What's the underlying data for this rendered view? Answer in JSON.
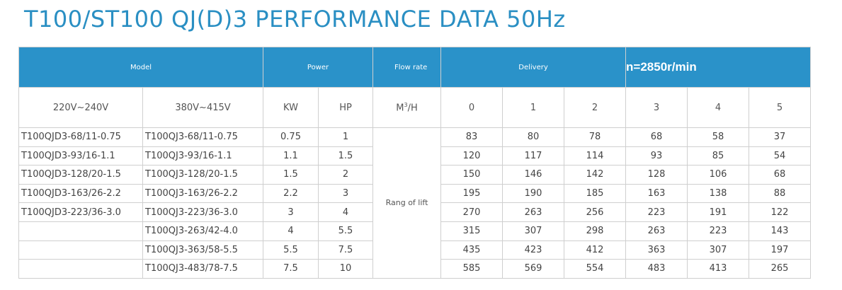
{
  "title": "T100/ST100 QJ(D)3  PERFORMANCE DATA 50Hz",
  "header": {
    "model": "Model",
    "power": "Power",
    "flow_rate": "Flow rate",
    "delivery": "Delivery",
    "speed": "n=2850r/min"
  },
  "subheader": {
    "voltage_1": "220V~240V",
    "voltage_2": "380V~415V",
    "kw": "KW",
    "hp": "HP",
    "flow_unit_base": "M",
    "flow_unit_exp": "3",
    "flow_unit_tail": "/H",
    "flows": [
      "0",
      "1",
      "2",
      "3",
      "4",
      "5"
    ]
  },
  "lift_label": "Rang of lift",
  "rows": [
    {
      "m1": "T100QJD3-68/11-0.75",
      "m2": "T100QJ3-68/11-0.75",
      "kw": "0.75",
      "hp": "1",
      "lift": [
        "83",
        "80",
        "78",
        "68",
        "58",
        "37"
      ]
    },
    {
      "m1": "T100QJD3-93/16-1.1",
      "m2": "T100QJ3-93/16-1.1",
      "kw": "1.1",
      "hp": "1.5",
      "lift": [
        "120",
        "117",
        "114",
        "93",
        "85",
        "54"
      ]
    },
    {
      "m1": "T100QJD3-128/20-1.5",
      "m2": "T100QJ3-128/20-1.5",
      "kw": "1.5",
      "hp": "2",
      "lift": [
        "150",
        "146",
        "142",
        "128",
        "106",
        "68"
      ]
    },
    {
      "m1": "T100QJD3-163/26-2.2",
      "m2": "T100QJ3-163/26-2.2",
      "kw": "2.2",
      "hp": "3",
      "lift": [
        "195",
        "190",
        "185",
        "163",
        "138",
        "88"
      ]
    },
    {
      "m1": "T100QJD3-223/36-3.0",
      "m2": "T100QJ3-223/36-3.0",
      "kw": "3",
      "hp": "4",
      "lift": [
        "270",
        "263",
        "256",
        "223",
        "191",
        "122"
      ]
    },
    {
      "m1": "",
      "m2": "T100QJ3-263/42-4.0",
      "kw": "4",
      "hp": "5.5",
      "lift": [
        "315",
        "307",
        "298",
        "263",
        "223",
        "143"
      ]
    },
    {
      "m1": "",
      "m2": "T100QJ3-363/58-5.5",
      "kw": "5.5",
      "hp": "7.5",
      "lift": [
        "435",
        "423",
        "412",
        "363",
        "307",
        "197"
      ]
    },
    {
      "m1": "",
      "m2": "T100QJ3-483/78-7.5",
      "kw": "7.5",
      "hp": "10",
      "lift": [
        "585",
        "569",
        "554",
        "483",
        "413",
        "265"
      ]
    }
  ]
}
